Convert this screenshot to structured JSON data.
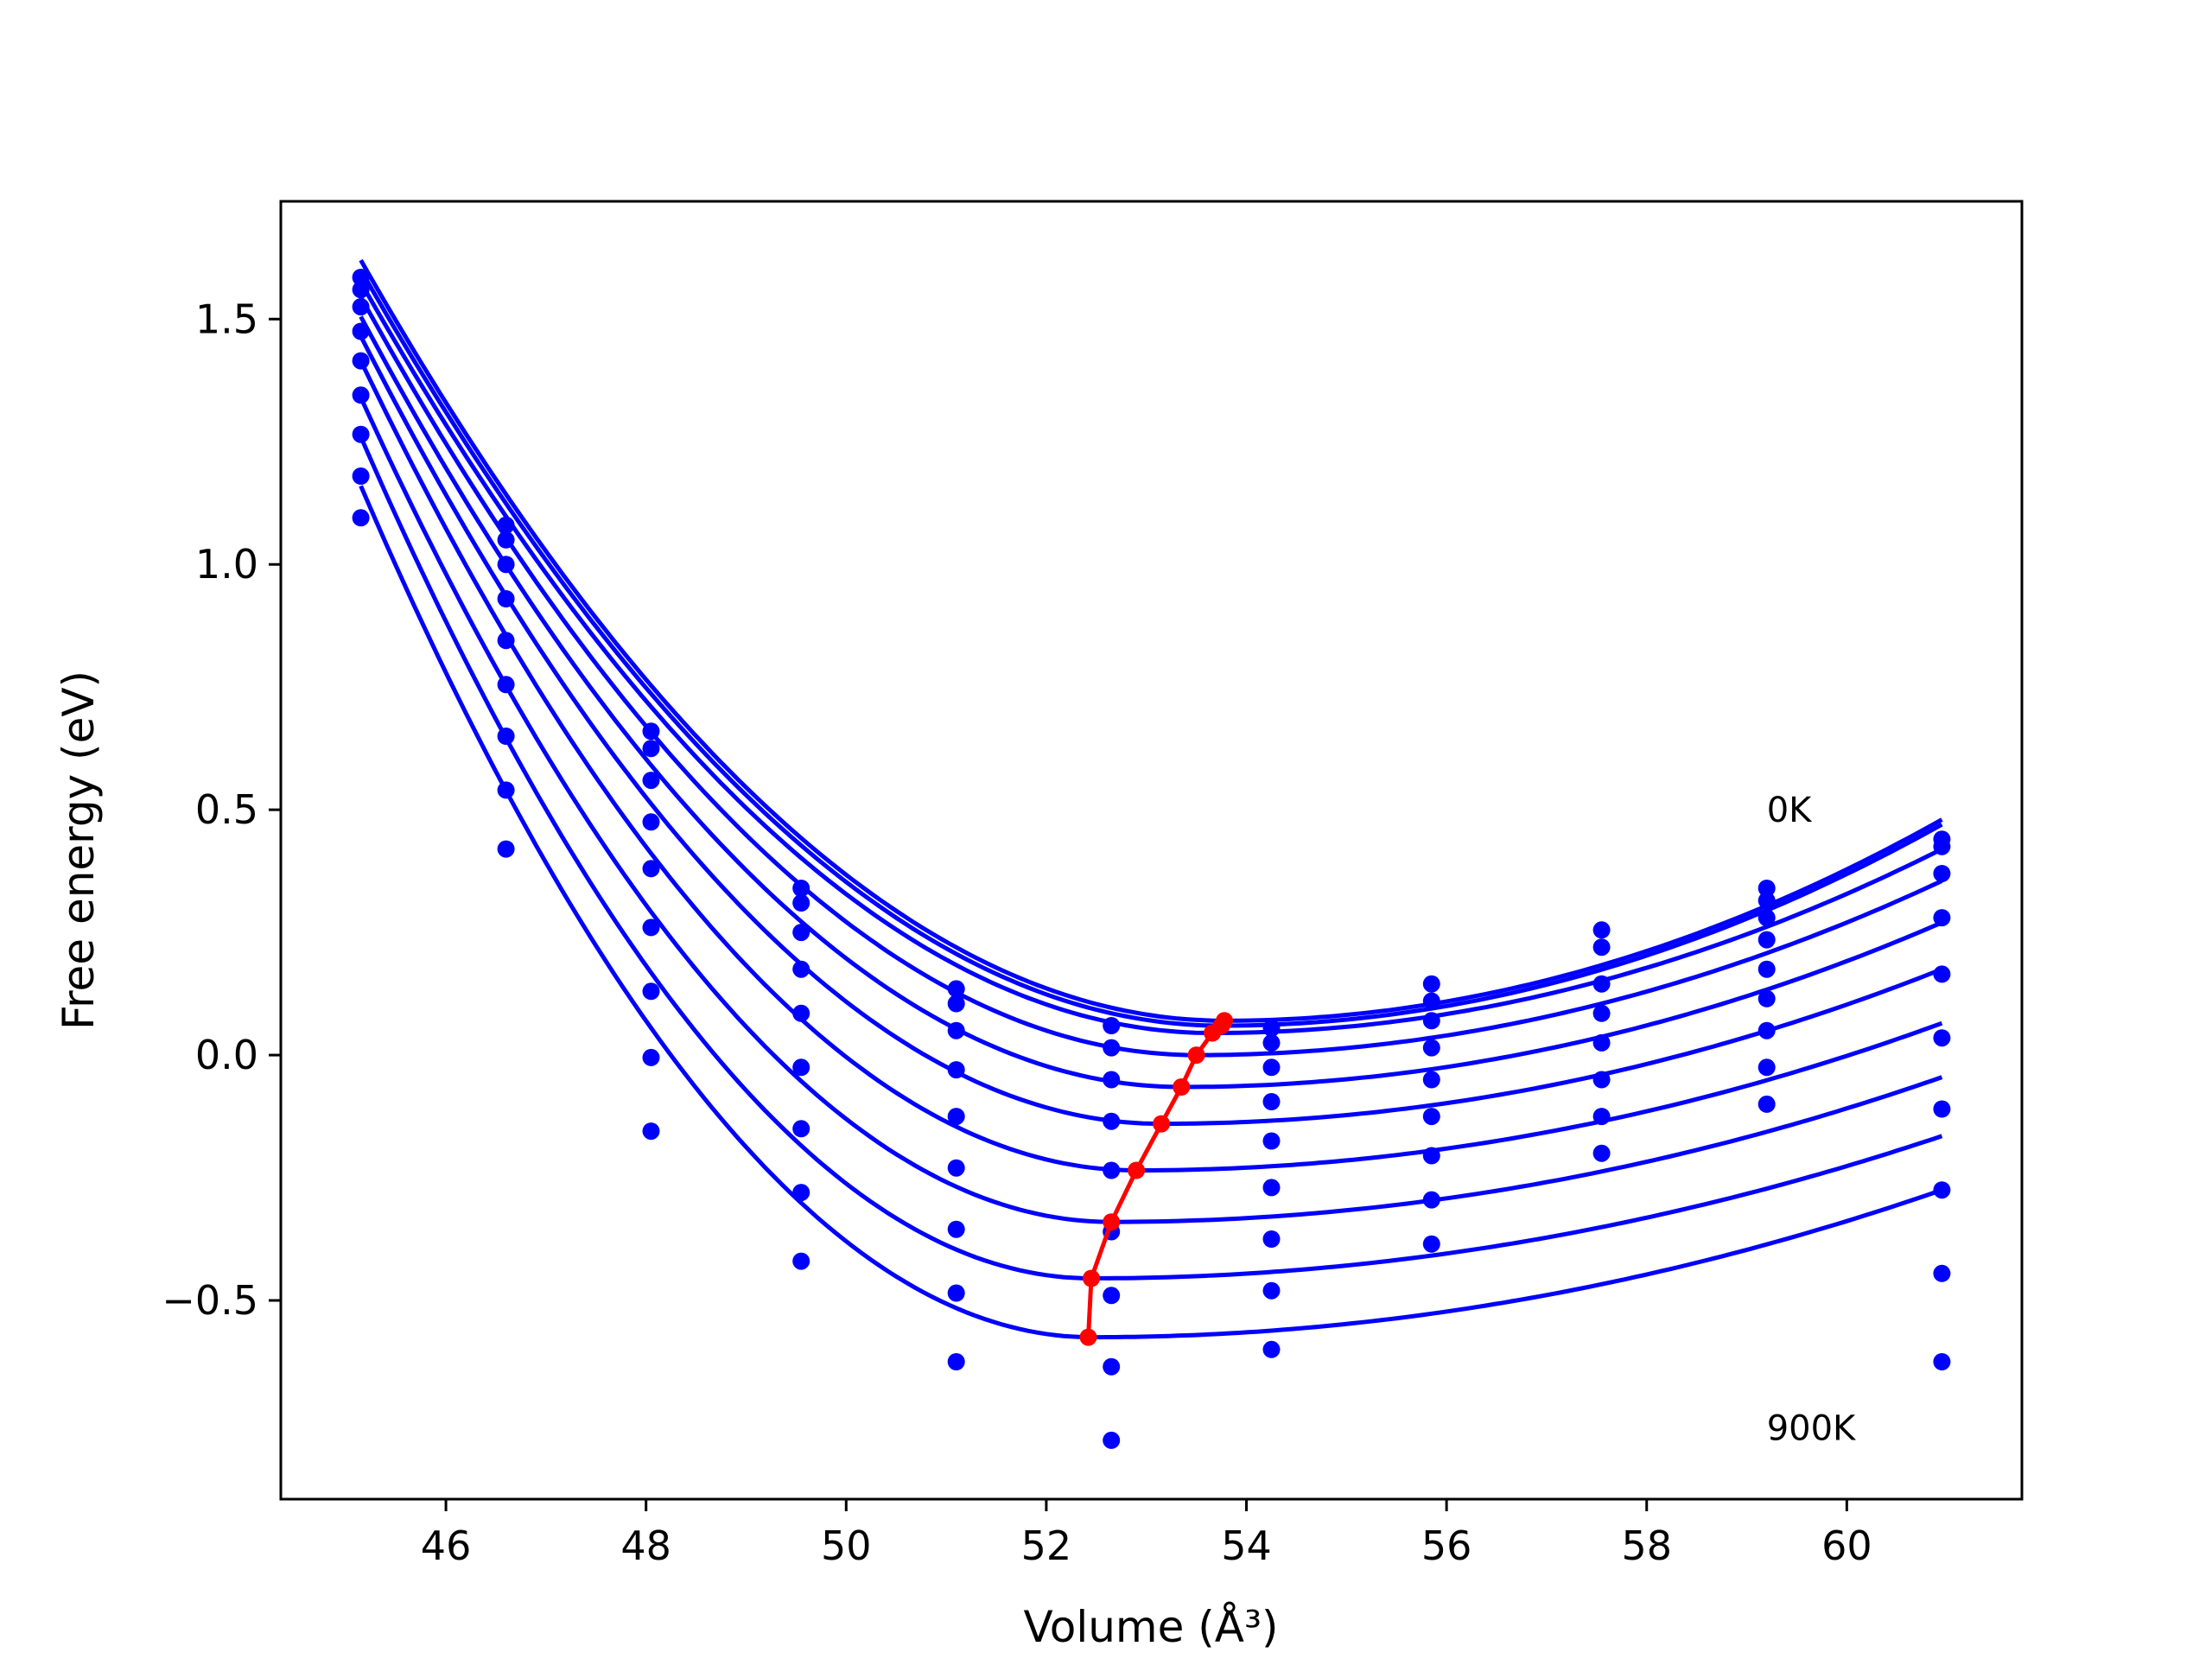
{
  "chart_data": {
    "type": "line",
    "xlabel": "Volume (Å³)",
    "ylabel": "Free energy (eV)",
    "xlim": [
      44.35,
      61.75
    ],
    "ylim": [
      -0.905,
      1.74
    ],
    "x_ticks": [
      46,
      48,
      50,
      52,
      54,
      56,
      58,
      60
    ],
    "y_ticks": [
      -0.5,
      0.0,
      0.5,
      1.0,
      1.5
    ],
    "y_tick_labels": [
      "−0.5",
      "0.0",
      "0.5",
      "1.0",
      "1.5"
    ],
    "grid": false,
    "legend": "none",
    "annotations": [
      {
        "text": "0K",
        "x": 59.2,
        "y": 0.5
      },
      {
        "text": "900K",
        "x": 59.2,
        "y": -0.76
      }
    ],
    "colors": {
      "fits": "#0000ff",
      "points": "#0000ff",
      "minima": "#ff0000"
    },
    "data_volumes": [
      45.15,
      46.6,
      48.05,
      49.55,
      51.1,
      52.65,
      54.25,
      55.85,
      57.55,
      59.2,
      60.95
    ],
    "series": [
      {
        "curve": {
          "x_start": 45.15,
          "x_end": 60.95,
          "y_start": 1.62,
          "x_min": 53.78,
          "y_min": 0.07,
          "y_end": 0.48
        },
        "points": [
          1.585,
          1.08,
          0.66,
          0.34,
          0.135,
          0.06,
          0.055,
          0.145,
          0.255,
          0.34,
          0.44
        ]
      },
      {
        "curve": {
          "x_start": 45.15,
          "x_end": 60.95,
          "y_start": 1.6,
          "x_min": 53.75,
          "y_min": 0.06,
          "y_end": 0.47
        },
        "points": [
          1.56,
          1.05,
          0.625,
          0.31,
          0.105,
          0.015,
          0.025,
          0.11,
          0.22,
          0.315,
          0.425
        ]
      },
      {
        "curve": {
          "x_start": 45.15,
          "x_end": 60.95,
          "y_start": 1.575,
          "x_min": 53.66,
          "y_min": 0.045,
          "y_end": 0.42
        },
        "points": [
          1.525,
          1.0,
          0.56,
          0.25,
          0.05,
          -0.05,
          -0.025,
          0.07,
          0.145,
          0.28,
          0.37
        ]
      },
      {
        "curve": {
          "x_start": 45.15,
          "x_end": 60.95,
          "y_start": 1.545,
          "x_min": 53.5,
          "y_min": 0.0,
          "y_end": 0.355
        },
        "points": [
          1.475,
          0.93,
          0.475,
          0.175,
          -0.03,
          -0.135,
          -0.095,
          0.015,
          0.085,
          0.235,
          0.28
        ]
      },
      {
        "curve": {
          "x_start": 45.15,
          "x_end": 60.95,
          "y_start": 1.505,
          "x_min": 53.35,
          "y_min": -0.065,
          "y_end": 0.27
        },
        "points": [
          1.415,
          0.845,
          0.38,
          0.085,
          -0.125,
          -0.235,
          -0.175,
          -0.05,
          0.025,
          0.175,
          0.165
        ]
      },
      {
        "curve": {
          "x_start": 45.15,
          "x_end": 60.95,
          "y_start": 1.465,
          "x_min": 53.15,
          "y_min": -0.14,
          "y_end": 0.175
        },
        "points": [
          1.345,
          0.755,
          0.26,
          -0.025,
          -0.23,
          -0.36,
          -0.27,
          -0.125,
          -0.05,
          0.115,
          0.035
        ]
      },
      {
        "curve": {
          "x_start": 45.15,
          "x_end": 60.95,
          "y_start": 1.415,
          "x_min": 52.9,
          "y_min": -0.235,
          "y_end": 0.065
        },
        "points": [
          1.265,
          0.65,
          0.13,
          -0.15,
          -0.355,
          -0.49,
          -0.375,
          -0.205,
          -0.125,
          0.05,
          -0.11
        ]
      },
      {
        "curve": {
          "x_start": 45.15,
          "x_end": 60.95,
          "y_start": 1.34,
          "x_min": 52.65,
          "y_min": -0.34,
          "y_end": -0.045
        },
        "points": [
          1.18,
          0.54,
          -0.005,
          -0.28,
          -0.485,
          -0.635,
          -0.48,
          -0.295,
          -0.2,
          -0.025,
          -0.275
        ]
      },
      {
        "curve": {
          "x_start": 45.15,
          "x_end": 60.95,
          "y_start": 1.26,
          "x_min": 52.45,
          "y_min": -0.455,
          "y_end": -0.165
        },
        "points": [
          1.095,
          0.42,
          -0.155,
          -0.42,
          -0.625,
          -0.785,
          -0.6,
          -0.385,
          null,
          -0.1,
          -0.445
        ]
      },
      {
        "curve": {
          "x_start": 45.15,
          "x_end": 60.95,
          "y_start": 1.16,
          "x_min": 52.45,
          "y_min": -0.575,
          "y_end": -0.275
        },
        "points": [
          null,
          null,
          null,
          null,
          null,
          null,
          null,
          null,
          null,
          null,
          -0.625
        ]
      }
    ],
    "minima_line": {
      "x": [
        53.78,
        53.75,
        53.66,
        53.5,
        53.35,
        53.15,
        52.9,
        52.65,
        52.45
      ],
      "y": [
        0.07,
        0.06,
        0.045,
        0.0,
        -0.065,
        -0.14,
        -0.235,
        -0.34,
        -0.455
      ]
    },
    "minima_extra": {
      "x": 52.42,
      "y": -0.575
    }
  }
}
